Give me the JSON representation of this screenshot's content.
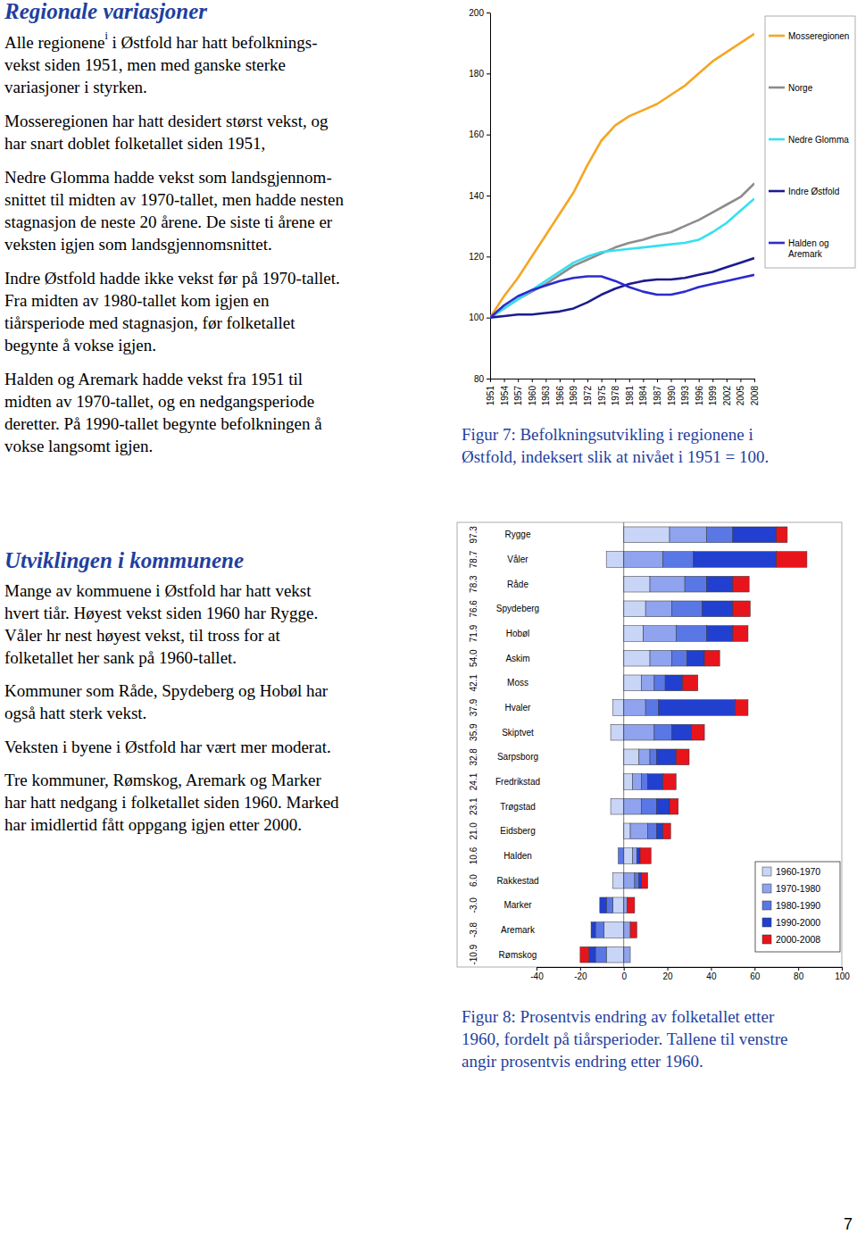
{
  "document": {
    "sections": [
      {
        "heading": "Regionale variasjoner",
        "paragraphs": [
          [
            {
              "before": "Alle regionene",
              "sup": "i",
              "after": " i Østfold har hatt befolknings-"
            },
            "vekst siden 1951, men med ganske sterke",
            "variasjoner i styrken."
          ],
          [
            "Mosseregionen har hatt desidert størst vekst, og",
            "har snart doblet folketallet siden 1951,"
          ],
          [
            "Nedre Glomma hadde vekst som landsgjennom-",
            "snittet til midten av 1970-tallet, men hadde nesten",
            "stagnasjon de neste 20 årene. De siste ti årene er",
            "veksten igjen som landsgjennomsnittet."
          ],
          [
            "Indre Østfold hadde ikke vekst før på 1970-tallet.",
            "Fra midten av 1980-tallet kom igjen en",
            "tiårsperiode med stagnasjon, før folketallet",
            "begynte å vokse igjen."
          ],
          [
            "Halden og Aremark hadde vekst fra 1951 til",
            "midten av 1970-tallet, og en nedgangsperiode",
            "deretter. På 1990-tallet begynte befolkningen å",
            "vokse langsomt igjen."
          ]
        ]
      },
      {
        "heading": "Utviklingen i kommunene",
        "paragraphs": [
          [
            "Mange av kommuene i Østfold har hatt vekst",
            "hvert tiår. Høyest vekst siden 1960 har Rygge.",
            "Våler hr nest høyest vekst, til tross for at",
            "folketallet her sank på 1960-tallet."
          ],
          [
            "Kommuner som Råde, Spydeberg og Hobøl har",
            "også hatt sterk vekst."
          ],
          [
            "Veksten i byene i Østfold har vært mer moderat."
          ],
          [
            "Tre kommuner, Rømskog, Aremark og Marker",
            "har hatt nedgang i folketallet siden 1960. Marked",
            "har imidlertid fått oppgang igjen etter 2000."
          ]
        ]
      }
    ],
    "page_number": "7"
  },
  "chart_data": [
    {
      "type": "line",
      "title": [
        "Figur 7: Befolkningsutvikling i regionene i",
        "Østfold, indeksert slik at nivået i 1951 = 100."
      ],
      "x": [
        1951,
        1954,
        1957,
        1960,
        1963,
        1966,
        1969,
        1972,
        1975,
        1978,
        1981,
        1984,
        1987,
        1990,
        1993,
        1996,
        1999,
        2002,
        2005,
        2008
      ],
      "xlim": [
        1951,
        2008
      ],
      "xticks": [
        1951,
        1954,
        1957,
        1960,
        1963,
        1966,
        1969,
        1972,
        1975,
        1978,
        1981,
        1984,
        1987,
        1990,
        1993,
        1996,
        1999,
        2002,
        2005,
        2008
      ],
      "ylim": [
        80,
        200
      ],
      "yticks": [
        80,
        100,
        120,
        140,
        160,
        180,
        200
      ],
      "legend": "right",
      "series": [
        {
          "name": "Mosseregionen",
          "color": "#f5a623",
          "values": [
            100,
            107,
            113,
            120,
            127,
            134,
            141,
            150,
            158,
            163,
            166,
            168,
            170,
            173,
            176,
            180,
            184,
            187,
            190,
            193
          ]
        },
        {
          "name": "Norge",
          "color": "#8c8c8c",
          "values": [
            100,
            103,
            106,
            108.5,
            111,
            114,
            117,
            119,
            121,
            123,
            124.5,
            125.5,
            127,
            128,
            130,
            132,
            134.5,
            137,
            139.5,
            144
          ]
        },
        {
          "name": "Nedre Glomma",
          "color": "#34e0f0",
          "values": [
            100,
            103,
            106,
            109,
            112,
            115,
            118,
            120,
            121.5,
            122,
            122.5,
            123,
            123.5,
            124,
            124.5,
            125.5,
            128,
            131,
            135,
            139
          ]
        },
        {
          "name": "Indre Østfold",
          "color": "#1c1c8f",
          "values": [
            100,
            100.5,
            101,
            101,
            101.5,
            102,
            103,
            105,
            107.5,
            109.5,
            111,
            112,
            112.5,
            112.5,
            113,
            114,
            115,
            116.5,
            118,
            119.5
          ]
        },
        {
          "name": "Halden og Aremark",
          "color": "#2b2bd0",
          "values": [
            100,
            104,
            107,
            109,
            110.5,
            112,
            113,
            113.5,
            113.5,
            112,
            110,
            108.5,
            107.5,
            107.5,
            108.5,
            110,
            111,
            112,
            113,
            114
          ]
        }
      ]
    },
    {
      "type": "bar",
      "orientation": "horizontal",
      "stacked": true,
      "title": [
        "Figur 8: Prosentvis endring av folketallet etter",
        "1960, fordelt på tiårsperioder. Tallene til venstre",
        "angir prosentvis endring etter 1960."
      ],
      "categories": [
        "Rygge",
        "Våler",
        "Råde",
        "Spydeberg",
        "Hobøl",
        "Askim",
        "Moss",
        "Hvaler",
        "Skiptvet",
        "Sarpsborg",
        "Fredrikstad",
        "Trøgstad",
        "Eidsberg",
        "Halden",
        "Rakkestad",
        "Marker",
        "Aremark",
        "Rømskog"
      ],
      "totals": [
        97.3,
        78.7,
        78.3,
        76.6,
        71.9,
        54.0,
        42.1,
        37.9,
        35.9,
        32.8,
        24.1,
        23.1,
        21.0,
        10.6,
        6.0,
        -3.0,
        -3.8,
        -10.9
      ],
      "totals_labels": [
        "97.3",
        "78.7",
        "78.3",
        "76.6",
        "71.9",
        "54.0",
        "42.1",
        "37.9",
        "35.9",
        "32.8",
        "24.1",
        "23.1",
        "21.0",
        "10.6",
        "6.0",
        "-3.0",
        "-3.8",
        "-10.9"
      ],
      "xlim": [
        -40,
        100
      ],
      "xticks": [
        -40,
        -20,
        0,
        20,
        40,
        60,
        80,
        100
      ],
      "legend": "lower right",
      "series": [
        {
          "name": "1960-1970",
          "color": "#c9d5f7",
          "values": [
            21,
            -8,
            12,
            10,
            9,
            12,
            8,
            -5,
            -6,
            7,
            4,
            -6,
            3,
            4,
            -5,
            -5,
            -9,
            -8
          ]
        },
        {
          "name": "1970-1980",
          "color": "#8fa3ee",
          "values": [
            17,
            18,
            16,
            12,
            15,
            10,
            6,
            10,
            14,
            5,
            4,
            8,
            8,
            2,
            5,
            1.5,
            3,
            3
          ]
        },
        {
          "name": "1980-1990",
          "color": "#5a77e6",
          "values": [
            12,
            14,
            10,
            14,
            14,
            7,
            5,
            6,
            8,
            3,
            3,
            7,
            4,
            -2.5,
            2,
            -3,
            -4,
            -5
          ]
        },
        {
          "name": "1990-2000",
          "color": "#2140d0",
          "values": [
            20,
            38,
            12,
            14,
            12,
            8,
            8,
            35,
            9,
            9,
            7,
            6,
            3,
            1.5,
            1,
            -3,
            -2,
            -3
          ]
        },
        {
          "name": "2000-2008",
          "color": "#e8141c",
          "values": [
            5,
            14,
            7.5,
            8,
            7,
            7,
            7,
            6,
            6,
            6,
            6,
            4,
            3.5,
            5,
            3,
            3.5,
            3,
            -4
          ]
        }
      ]
    }
  ]
}
